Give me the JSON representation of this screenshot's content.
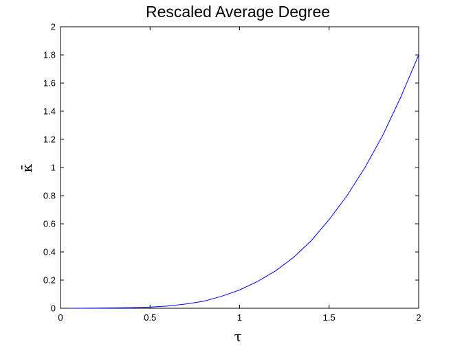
{
  "chart_data": {
    "type": "line",
    "title": "Rescaled Average Degree",
    "xlabel": "τ",
    "ylabel": "κ̄",
    "xlim": [
      0,
      2
    ],
    "ylim": [
      0,
      2
    ],
    "xticks": [
      0,
      0.5,
      1,
      1.5,
      2
    ],
    "xtick_labels": [
      "0",
      "0.5",
      "1",
      "1.5",
      "2"
    ],
    "yticks": [
      0,
      0.2,
      0.4,
      0.6,
      0.8,
      1,
      1.2,
      1.4,
      1.6,
      1.8,
      2
    ],
    "ytick_labels": [
      "0",
      "0.2",
      "0.4",
      "0.6",
      "0.8",
      "1",
      "1.2",
      "1.4",
      "1.6",
      "1.8",
      "2"
    ],
    "grid": false,
    "series": [
      {
        "color": "#0000ff",
        "x": [
          0.05,
          0.2,
          0.4,
          0.5,
          0.6,
          0.7,
          0.8,
          0.9,
          1.0,
          1.1,
          1.2,
          1.3,
          1.4,
          1.5,
          1.6,
          1.7,
          1.8,
          1.9,
          2.0
        ],
        "y": [
          0.0,
          0.001,
          0.004,
          0.008,
          0.016,
          0.03,
          0.05,
          0.085,
          0.13,
          0.19,
          0.265,
          0.36,
          0.48,
          0.63,
          0.8,
          1.0,
          1.23,
          1.5,
          1.8
        ]
      }
    ]
  }
}
